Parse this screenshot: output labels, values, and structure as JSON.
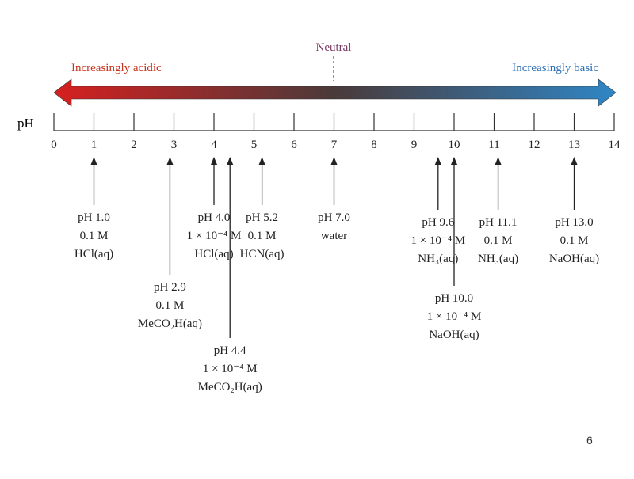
{
  "arrow": {
    "acidic_label": "Increasingly acidic",
    "basic_label": "Increasingly basic",
    "neutral_label": "Neutral",
    "acid_color": "#d71f1f",
    "mid_color": "#4a3a3a",
    "base_color": "#2f86c6",
    "acid_text_color": "#c8321e",
    "base_text_color": "#2f6fb8",
    "neutral_text_color": "#7a3a66"
  },
  "scale": {
    "label": "pH",
    "min": 0,
    "max": 14,
    "ticks": [
      "0",
      "1",
      "2",
      "3",
      "4",
      "5",
      "6",
      "7",
      "8",
      "9",
      "10",
      "11",
      "12",
      "13",
      "14"
    ]
  },
  "markers": [
    {
      "ph": 1.0,
      "lines": [
        "pH 1.0",
        "0.1 M",
        "HCl(aq)"
      ]
    },
    {
      "ph": 2.9,
      "lines": [
        "pH 2.9",
        "0.1 M",
        "MeCO₂H(aq)"
      ]
    },
    {
      "ph": 4.0,
      "lines": [
        "pH 4.0",
        "1 × 10⁻⁴ M",
        "HCl(aq)"
      ]
    },
    {
      "ph": 4.4,
      "lines": [
        "pH 4.4",
        "1 × 10⁻⁴ M",
        "MeCO₂H(aq)"
      ]
    },
    {
      "ph": 5.2,
      "lines": [
        "pH 5.2",
        "0.1 M",
        "HCN(aq)"
      ]
    },
    {
      "ph": 7.0,
      "lines": [
        "pH 7.0",
        "water"
      ]
    },
    {
      "ph": 9.6,
      "lines": [
        "pH 9.6",
        "1 × 10⁻⁴ M",
        "NH₃(aq)"
      ]
    },
    {
      "ph": 10.0,
      "lines": [
        "pH 10.0",
        "1 × 10⁻⁴ M",
        "NaOH(aq)"
      ]
    },
    {
      "ph": 11.1,
      "lines": [
        "pH 11.1",
        "0.1 M",
        "NH₃(aq)"
      ]
    },
    {
      "ph": 13.0,
      "lines": [
        "pH 13.0",
        "0.1 M",
        "NaOH(aq)"
      ]
    }
  ],
  "page_number": "6"
}
